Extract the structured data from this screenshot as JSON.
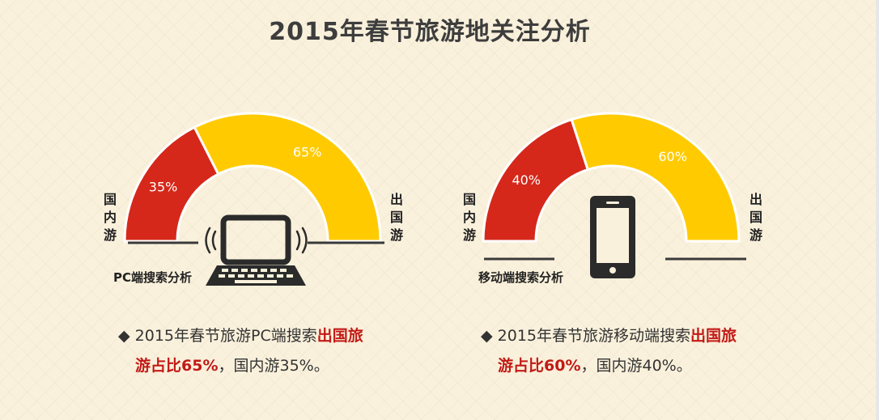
{
  "title": "2015年春节旅游地关注分析",
  "chart_data": [
    {
      "type": "pie",
      "subtype": "half-donut",
      "title": "PC端搜索分析",
      "categories": [
        "国内游",
        "出国游"
      ],
      "values": [
        35,
        65
      ],
      "value_labels": [
        "35%",
        "65%"
      ],
      "colors": [
        "#d5281a",
        "#ffcb00"
      ],
      "left_label": "国内游",
      "right_label": "出国游"
    },
    {
      "type": "pie",
      "subtype": "half-donut",
      "title": "移动端搜索分析",
      "categories": [
        "国内游",
        "出国游"
      ],
      "values": [
        40,
        60
      ],
      "value_labels": [
        "40%",
        "60%"
      ],
      "colors": [
        "#d5281a",
        "#ffcb00"
      ],
      "left_label": "国内游",
      "right_label": "出国游"
    }
  ],
  "icons": [
    "laptop-icon",
    "smartphone-icon"
  ],
  "summaries": [
    {
      "marker": "◆",
      "text1": "2015年春节旅游PC端搜索",
      "hl1": "出国旅",
      "hl2": "游占比65%",
      "text2": "，国内游35%。"
    },
    {
      "marker": "◆",
      "text1": "2015年春节旅游移动端搜索",
      "hl1": "出国旅",
      "hl2": "游占比60%",
      "text2": "，国内游40%。"
    }
  ]
}
